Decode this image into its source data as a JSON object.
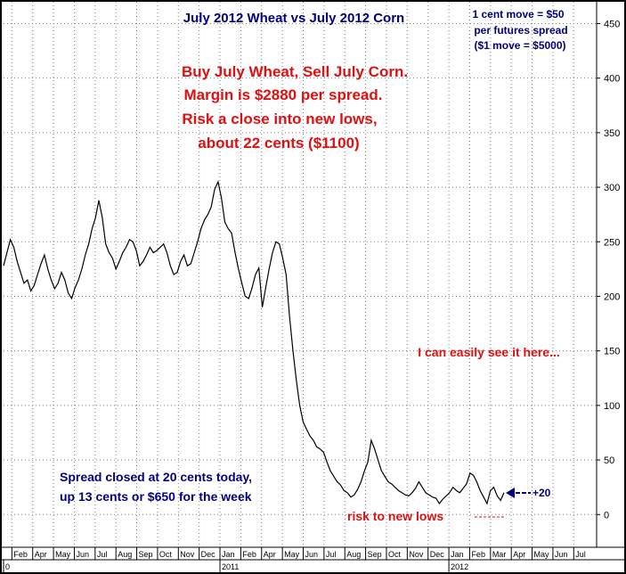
{
  "chart_data": {
    "type": "line",
    "title": "July 2012 Wheat vs July 2012 Corn",
    "ylim": [
      -30,
      470
    ],
    "yticks": [
      0,
      50,
      100,
      150,
      200,
      250,
      300,
      350,
      400,
      450
    ],
    "grid": true,
    "months": [
      "Feb",
      "Apr",
      "May",
      "Jun",
      "Jul",
      "Aug",
      "Sep",
      "Oct",
      "Nov",
      "Dec",
      "Jan",
      "Feb",
      "Apr",
      "May",
      "Jun",
      "Jul",
      "Aug",
      "Sep",
      "Oct",
      "Nov",
      "Dec",
      "Jan",
      "Feb",
      "Mar",
      "Apr",
      "May",
      "Jun",
      "Jul"
    ],
    "years": [
      "0",
      "2011",
      "2012"
    ],
    "series": [
      {
        "values": [
          228,
          240,
          252,
          245,
          232,
          222,
          212,
          215,
          205,
          210,
          220,
          230,
          238,
          225,
          215,
          207,
          212,
          222,
          215,
          203,
          198,
          208,
          215,
          225,
          238,
          248,
          262,
          272,
          288,
          272,
          248,
          240,
          235,
          225,
          232,
          240,
          245,
          252,
          250,
          242,
          228,
          232,
          238,
          245,
          240,
          242,
          245,
          248,
          240,
          228,
          220,
          222,
          232,
          238,
          228,
          230,
          240,
          250,
          262,
          270,
          275,
          282,
          298,
          305,
          290,
          268,
          262,
          258,
          240,
          225,
          212,
          200,
          198,
          208,
          220,
          226,
          190,
          208,
          225,
          240,
          250,
          248,
          235,
          220,
          182,
          150,
          123,
          100,
          85,
          78,
          72,
          68,
          62,
          60,
          57,
          48,
          40,
          35,
          30,
          27,
          22,
          20,
          16,
          18,
          23,
          30,
          40,
          48,
          68,
          60,
          50,
          40,
          35,
          30,
          28,
          25,
          22,
          20,
          18,
          17,
          20,
          24,
          30,
          25,
          20,
          18,
          16,
          15,
          10,
          14,
          17,
          20,
          25,
          22,
          20,
          24,
          28,
          38,
          36,
          30,
          22,
          16,
          10,
          22,
          25,
          17,
          13,
          20
        ]
      }
    ],
    "annotations": {
      "margin_note": [
        "1 cent move = $50",
        "per futures spread",
        "($1 move = $5000)"
      ],
      "trade_note": [
        "Buy July Wheat, Sell July Corn.",
        "Margin is $2880 per spread.",
        "Risk a close into new lows,",
        "about 22 cents ($1100)"
      ],
      "see_note": "I can easily see it here...",
      "closed_note": [
        "Spread closed at 20 cents today,",
        "up 13 cents or $650 for the week"
      ],
      "plus_label": "+20",
      "risk_label": "risk to new lows"
    },
    "colors": {
      "line": "#000000",
      "grid": "#808080",
      "red": "#e01010",
      "navy": "#000080"
    }
  }
}
